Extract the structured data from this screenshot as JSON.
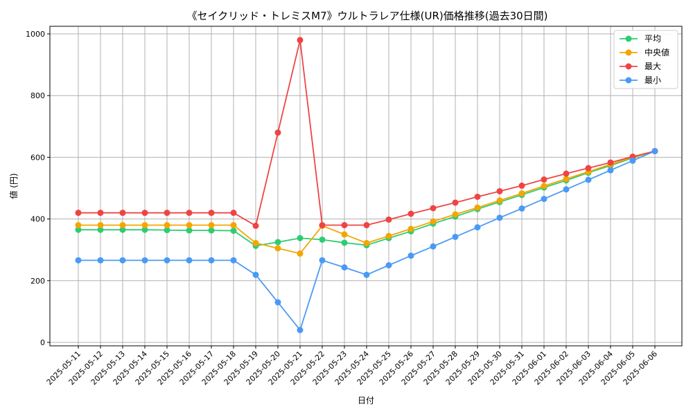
{
  "chart_data": {
    "type": "line",
    "title": "《セイクリッド・トレミスM7》ウルトラレア仕様(UR)価格推移(過去30日間)",
    "xlabel": "日付",
    "ylabel": "値 (円)",
    "ylim": [
      0,
      1000
    ],
    "yticks": [
      0,
      200,
      400,
      600,
      800,
      1000
    ],
    "grid": true,
    "legend_position": "top-right",
    "categories": [
      "2025-05-11",
      "2025-05-12",
      "2025-05-13",
      "2025-05-14",
      "2025-05-15",
      "2025-05-16",
      "2025-05-17",
      "2025-05-18",
      "2025-05-19",
      "2025-05-20",
      "2025-05-21",
      "2025-05-22",
      "2025-05-23",
      "2025-05-24",
      "2025-05-25",
      "2025-05-26",
      "2025-05-27",
      "2025-05-28",
      "2025-05-29",
      "2025-05-30",
      "2025-05-31",
      "2025-06-01",
      "2025-06-02",
      "2025-06-03",
      "2025-06-04",
      "2025-06-05",
      "2025-06-06"
    ],
    "series": [
      {
        "name": "平均",
        "color": "#2ecc71",
        "values": [
          365,
          365,
          365,
          365,
          364,
          363,
          363,
          362,
          313,
          325,
          338,
          333,
          323,
          315,
          338,
          360,
          385,
          408,
          432,
          455,
          478,
          502,
          525,
          550,
          573,
          598,
          620
        ]
      },
      {
        "name": "中央値",
        "color": "#f5a500",
        "values": [
          380,
          380,
          380,
          380,
          380,
          380,
          380,
          380,
          322,
          305,
          288,
          378,
          350,
          322,
          345,
          368,
          392,
          415,
          437,
          460,
          483,
          507,
          530,
          553,
          577,
          600,
          620
        ]
      },
      {
        "name": "最大",
        "color": "#ef4444",
        "values": [
          420,
          420,
          420,
          420,
          420,
          420,
          420,
          420,
          378,
          680,
          980,
          380,
          380,
          380,
          398,
          417,
          435,
          453,
          472,
          490,
          508,
          528,
          547,
          565,
          583,
          602,
          620
        ]
      },
      {
        "name": "最小",
        "color": "#4a9af5",
        "values": [
          266,
          266,
          266,
          266,
          266,
          266,
          266,
          266,
          219,
          130,
          40,
          266,
          243,
          219,
          250,
          281,
          311,
          342,
          373,
          404,
          434,
          465,
          496,
          527,
          558,
          589,
          620
        ]
      }
    ]
  }
}
